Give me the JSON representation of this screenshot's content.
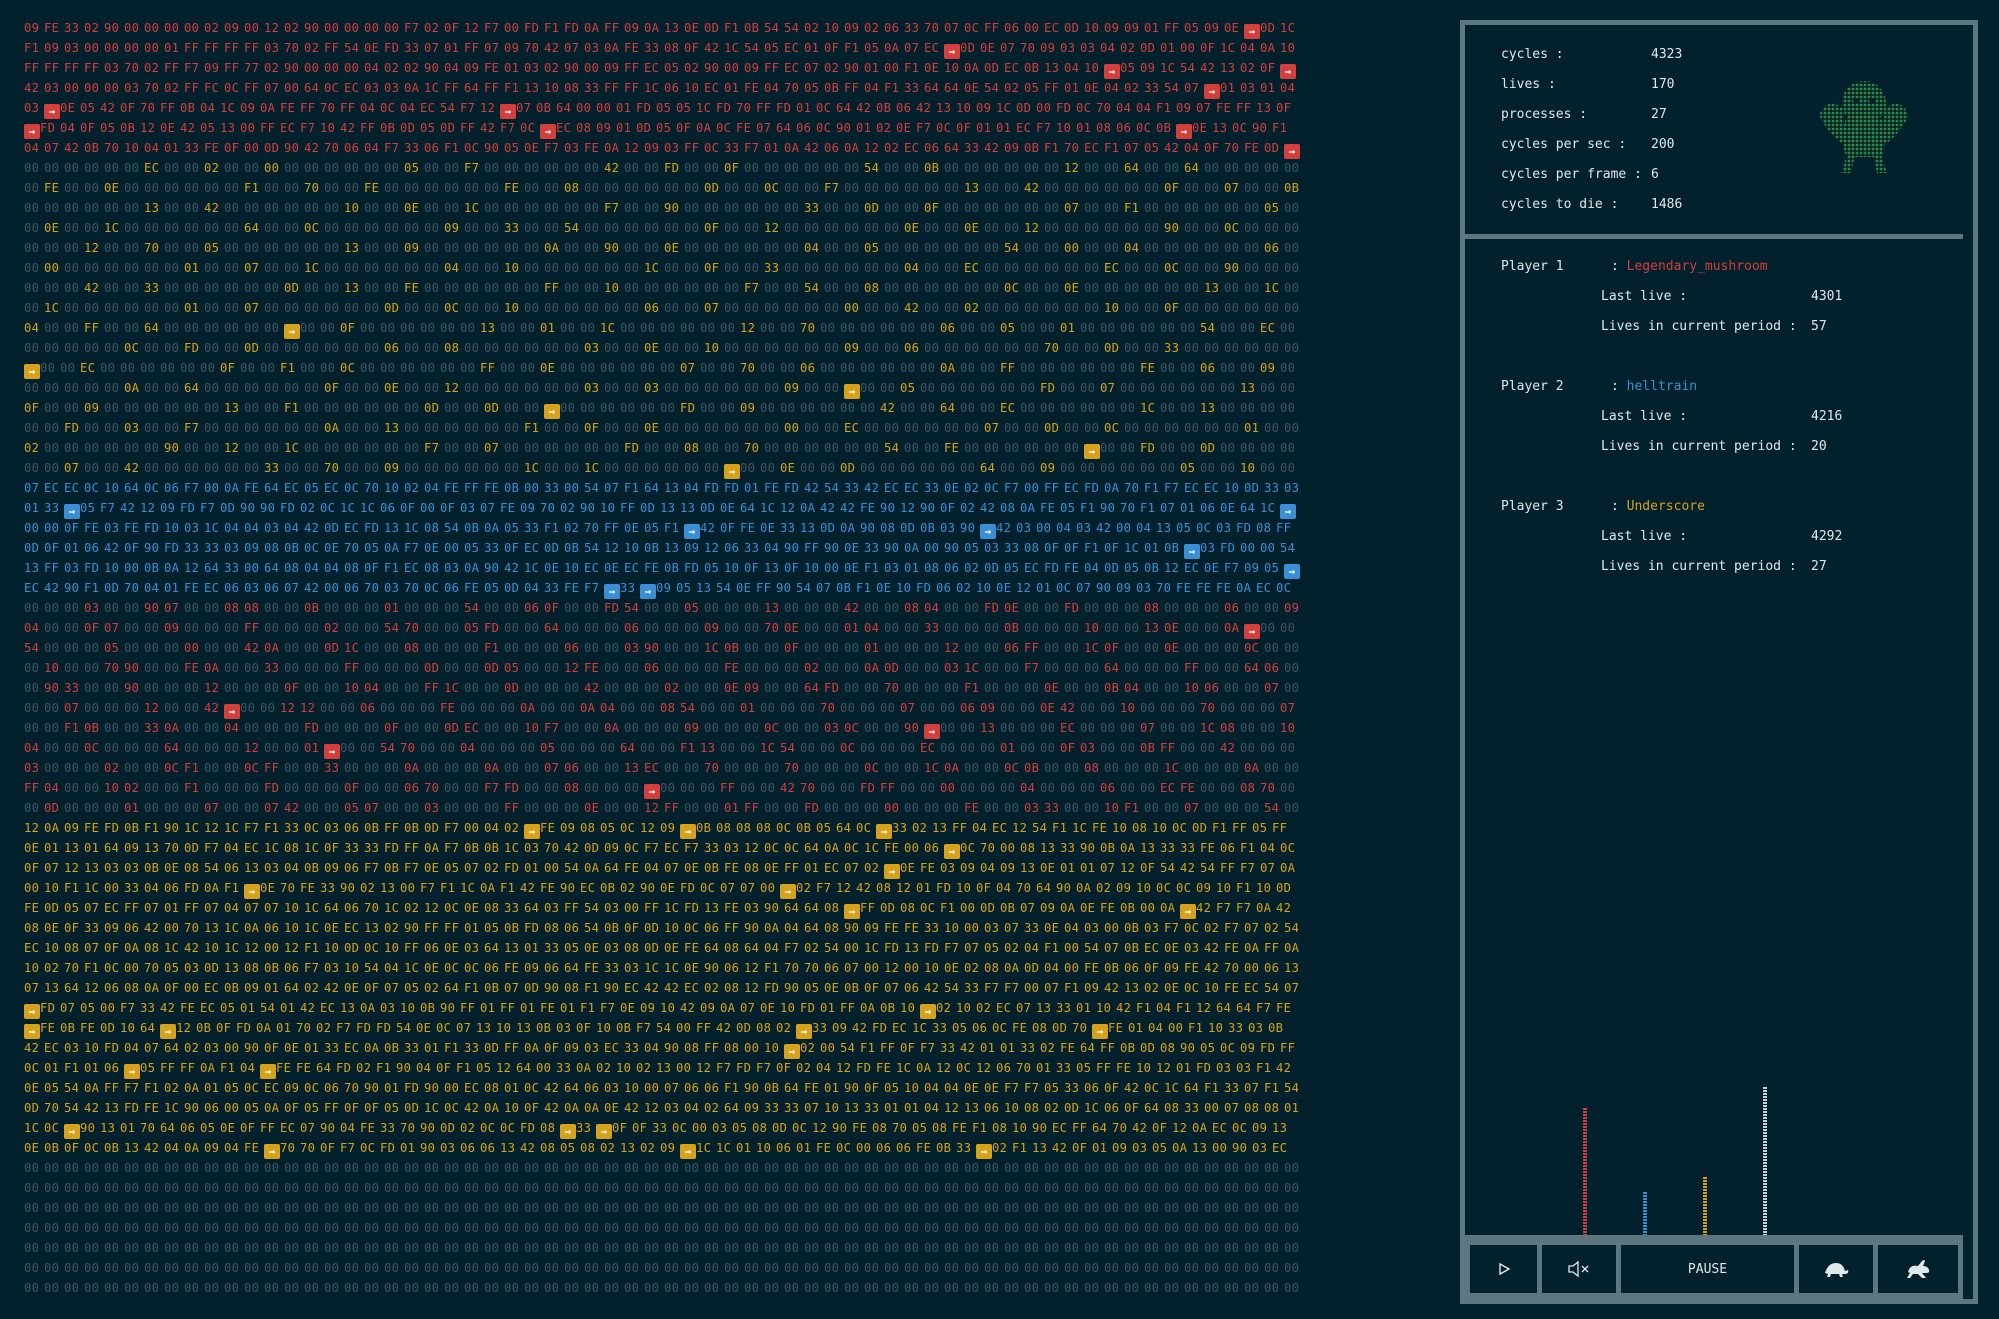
{
  "stats": {
    "items": [
      {
        "label": "cycles :",
        "value": "4323"
      },
      {
        "label": "lives :",
        "value": "170"
      },
      {
        "label": "processes :",
        "value": "27"
      },
      {
        "label": "cycles per sec :",
        "value": "200"
      },
      {
        "label": "cycles per frame :",
        "value": "6"
      },
      {
        "label": "cycles to die :",
        "value": "1486"
      }
    ]
  },
  "players": [
    {
      "title": "Player  1",
      "sep": ":",
      "name": "Legendary_mushroom",
      "color": "#d33f3c",
      "last_live_label": "Last live :",
      "last_live": "4301",
      "lives_label": "Lives in current period :",
      "lives": "57"
    },
    {
      "title": "Player  2",
      "sep": ":",
      "name": "helltrain",
      "color": "#3a8fd4",
      "last_live_label": "Last live :",
      "last_live": "4216",
      "lives_label": "Lives in current period :",
      "lives": "20"
    },
    {
      "title": "Player  3",
      "sep": ":",
      "name": "Underscore",
      "color": "#d6a21c",
      "last_live_label": "Last live :",
      "last_live": "4292",
      "lives_label": "Lives in current period :",
      "lives": "27"
    }
  ],
  "live_bars": [
    {
      "player": 1,
      "value": 57,
      "color": "#d33f3c"
    },
    {
      "player": 2,
      "value": 20,
      "color": "#3a8fd4"
    },
    {
      "player": 3,
      "value": 27,
      "color": "#d6a21c"
    },
    {
      "player": 0,
      "value": 66,
      "color": "#c9d3d6"
    }
  ],
  "controls": {
    "play_icon": "play-icon",
    "mute_icon": "speaker-muted-icon",
    "pause_label": "PAUSE",
    "slow_icon": "turtle-icon",
    "fast_icon": "rabbit-icon"
  },
  "arena": {
    "first_lines": [
      "09 FE 33 02 90 00 00 00 00 02 09 00 12 02 90 00 00 00 00",
      "F1 09 03 00 00 00 00 01 FF FF FF FF 03 70 02 FF",
      "FF FF FF FF 03 70 02 FF F7 09 FF 77 02 90 00 00 00 04 02 02 90 04 09 FE 01 03 02 90 00 09 FF EC 05 02 90 00 09 FF EC 07 02 90",
      "42 03 00 00 00 03 70 02 FF FC 0C FF"
    ],
    "colors": {
      "p1": "#d33f3c",
      "p2": "#3a8fd4",
      "p3": "#d6a21c",
      "empty": "#3e5560"
    }
  }
}
